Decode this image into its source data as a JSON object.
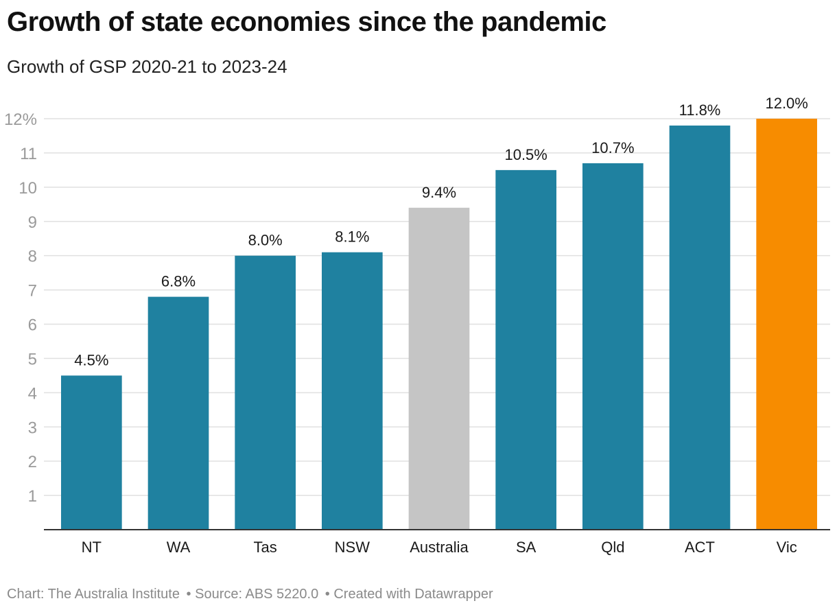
{
  "header": {
    "title": "Growth of state economies since the pandemic",
    "subtitle": "Growth of GSP 2020-21 to 2023-24"
  },
  "footer": {
    "chart_credit": "Chart: The Australia Institute",
    "source": "• Source: ABS 5220.0",
    "created_with": "• Created with Datawrapper"
  },
  "colors": {
    "state": "#1f81a0",
    "australia": "#c5c5c5",
    "highlight": "#f78c00",
    "grid": "#e0e0e0",
    "axis": "#333333",
    "tick_label": "#9a9a9a"
  },
  "chart_data": {
    "type": "bar",
    "title": "Growth of state economies since the pandemic",
    "subtitle": "Growth of GSP 2020-21 to 2023-24",
    "categories": [
      "NT",
      "WA",
      "Tas",
      "NSW",
      "Australia",
      "SA",
      "Qld",
      "ACT",
      "Vic"
    ],
    "values": [
      4.5,
      6.8,
      8.0,
      8.1,
      9.4,
      10.5,
      10.7,
      11.8,
      12.0
    ],
    "value_labels": [
      "4.5%",
      "6.8%",
      "8.0%",
      "8.1%",
      "9.4%",
      "10.5%",
      "10.7%",
      "11.8%",
      "12.0%"
    ],
    "bar_color_roles": [
      "state",
      "state",
      "state",
      "state",
      "australia",
      "state",
      "state",
      "state",
      "highlight"
    ],
    "y_ticks": [
      1,
      2,
      3,
      4,
      5,
      6,
      7,
      8,
      9,
      10,
      11,
      12
    ],
    "y_tick_labels": [
      "1",
      "2",
      "3",
      "4",
      "5",
      "6",
      "7",
      "8",
      "9",
      "10",
      "11",
      "12%"
    ],
    "ylim": [
      0,
      12
    ],
    "xlabel": "",
    "ylabel": "",
    "grid": true,
    "legend": "none"
  }
}
